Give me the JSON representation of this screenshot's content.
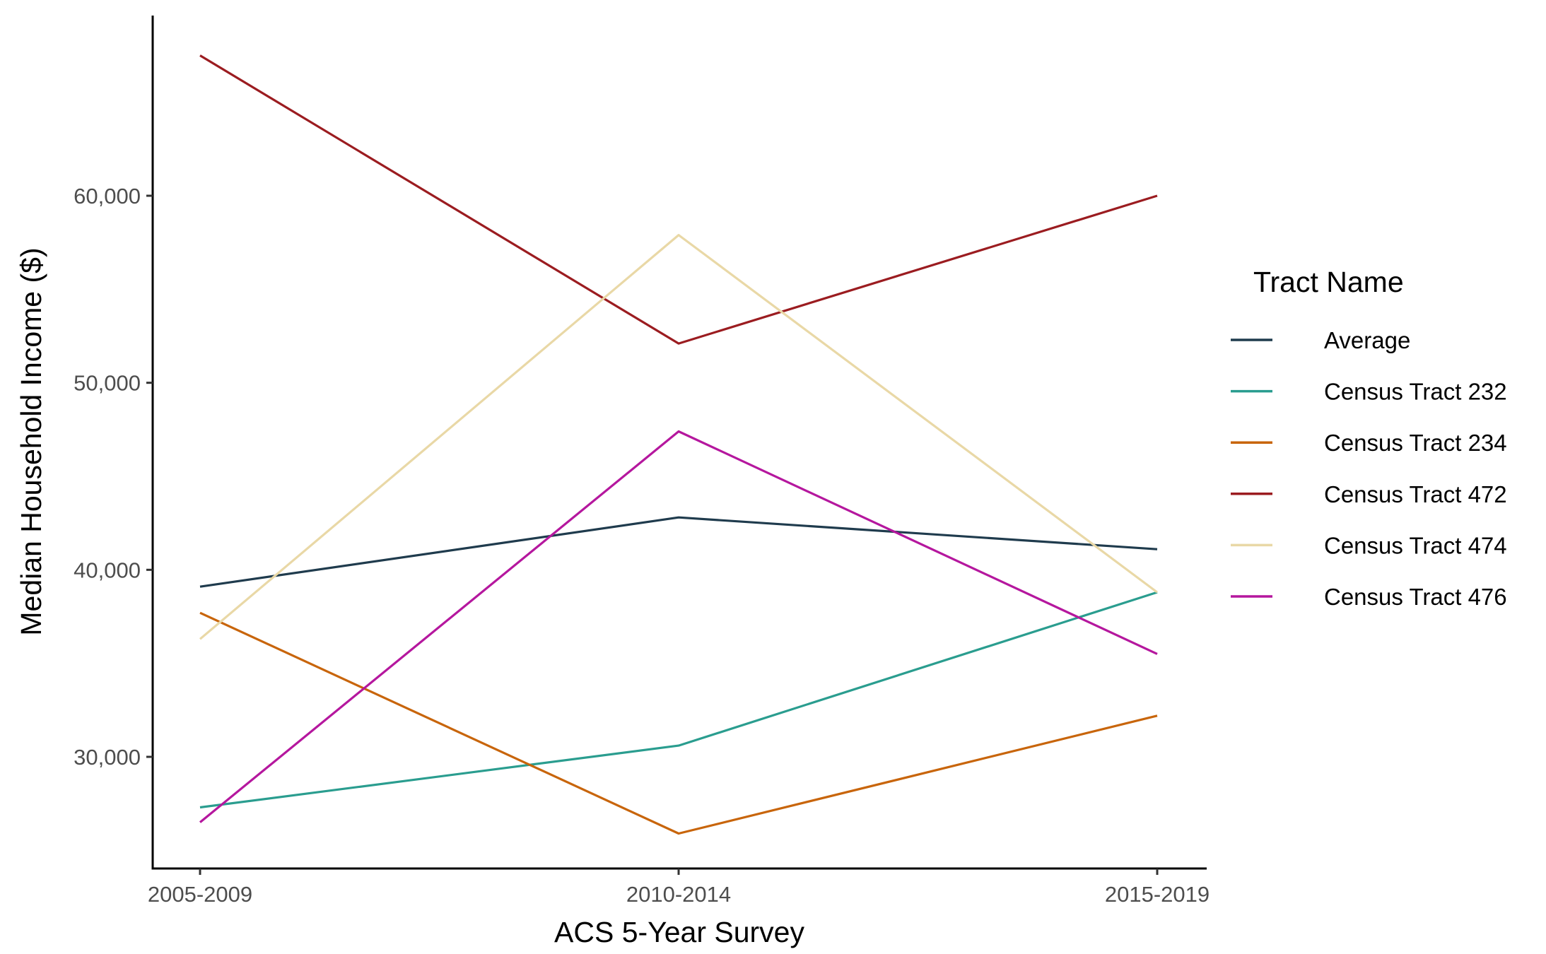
{
  "chart_data": {
    "type": "line",
    "categories": [
      "2005-2009",
      "2010-2014",
      "2015-2019"
    ],
    "series": [
      {
        "name": "Average",
        "color": "#1f3b4d",
        "values": [
          39100,
          42800,
          41100
        ]
      },
      {
        "name": "Census Tract 232",
        "color": "#2a9d8f",
        "values": [
          27300,
          30600,
          38800
        ]
      },
      {
        "name": "Census Tract 234",
        "color": "#c8650b",
        "values": [
          37700,
          25900,
          32200
        ]
      },
      {
        "name": "Census Tract 472",
        "color": "#9b1c20",
        "values": [
          67500,
          52100,
          60000
        ]
      },
      {
        "name": "Census Tract 474",
        "color": "#e9d8a6",
        "values": [
          36300,
          57900,
          38800
        ]
      },
      {
        "name": "Census Tract 476",
        "color": "#b5179e",
        "values": [
          26500,
          47400,
          35500
        ]
      }
    ],
    "yticks": [
      30000,
      40000,
      50000,
      60000
    ],
    "ytick_labels": [
      "30,000",
      "40,000",
      "50,000",
      "60,000"
    ],
    "ylim": [
      24000,
      69000
    ],
    "xlabel": "ACS 5-Year Survey",
    "ylabel": "Median Household Income ($)",
    "legend_title": "Tract Name",
    "legend_position": "right",
    "grid": false
  }
}
